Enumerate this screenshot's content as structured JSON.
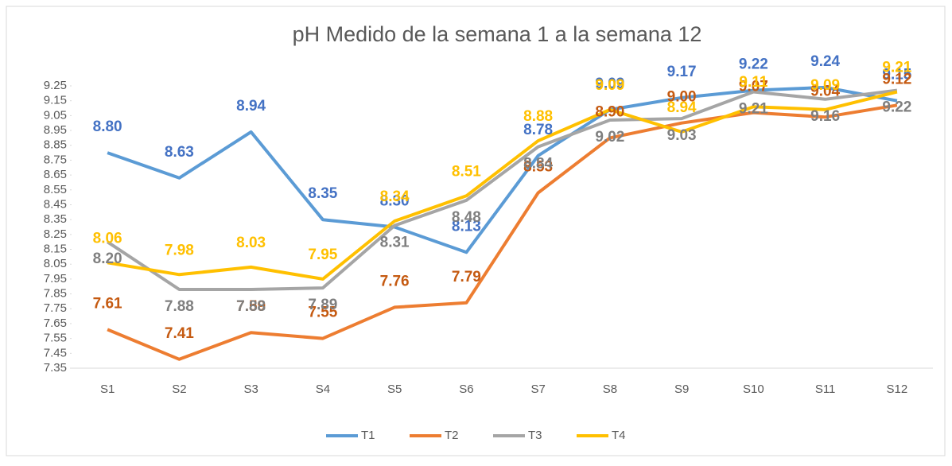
{
  "chart_data": {
    "type": "line",
    "title": "pH Medido de la semana 1 a la semana 12",
    "categories": [
      "S1",
      "S2",
      "S3",
      "S4",
      "S5",
      "S6",
      "S7",
      "S8",
      "S9",
      "S10",
      "S11",
      "S12"
    ],
    "ylim": [
      7.35,
      9.25
    ],
    "yticks": [
      7.35,
      7.45,
      7.55,
      7.65,
      7.75,
      7.85,
      7.95,
      8.05,
      8.15,
      8.25,
      8.35,
      8.45,
      8.55,
      8.65,
      8.75,
      8.85,
      8.95,
      9.05,
      9.15,
      9.25
    ],
    "legend": "bottom",
    "series": [
      {
        "name": "T1",
        "color": "#5b9bd5",
        "label_color": "#4472c4",
        "values": [
          8.8,
          8.63,
          8.94,
          8.35,
          8.3,
          8.13,
          8.78,
          9.09,
          9.17,
          9.22,
          9.24,
          9.15
        ],
        "value_labels": [
          "8.80",
          "8.63",
          "8.94",
          "8.35",
          "8.30",
          "8.13",
          "8.78",
          "9.09",
          "9.17",
          "9.22",
          "9.24",
          "9.15"
        ]
      },
      {
        "name": "T2",
        "color": "#ed7d31",
        "label_color": "#c55a11",
        "values": [
          7.61,
          7.41,
          7.59,
          7.55,
          7.76,
          7.79,
          8.53,
          8.9,
          9.0,
          9.07,
          9.04,
          9.12
        ],
        "value_labels": [
          "7.61",
          "7.41",
          "7.59",
          "7.55",
          "7.76",
          "7.79",
          "8.53",
          "8.90",
          "9.00",
          "9.07",
          "9.04",
          "9.12"
        ]
      },
      {
        "name": "T3",
        "color": "#a5a5a5",
        "label_color": "#7f7f7f",
        "values": [
          8.2,
          7.88,
          7.88,
          7.89,
          8.31,
          8.48,
          8.84,
          9.02,
          9.03,
          9.21,
          9.16,
          9.22
        ],
        "value_labels": [
          "8.20",
          "7.88",
          "7.88",
          "7.89",
          "8.31",
          "8.48",
          "8.84",
          "9.02",
          "9.03",
          "9.21",
          "9.16",
          "9.22"
        ]
      },
      {
        "name": "T4",
        "color": "#ffc000",
        "label_color": "#ffc000",
        "values": [
          8.06,
          7.98,
          8.03,
          7.95,
          8.34,
          8.51,
          8.88,
          9.09,
          8.94,
          9.11,
          9.09,
          9.21
        ],
        "value_labels": [
          "8.06",
          "7.98",
          "8.03",
          "7.95",
          "8.34",
          "8.51",
          "8.88",
          "9.09",
          "8.94",
          "9.11",
          "9.09",
          "9.21"
        ]
      }
    ]
  }
}
